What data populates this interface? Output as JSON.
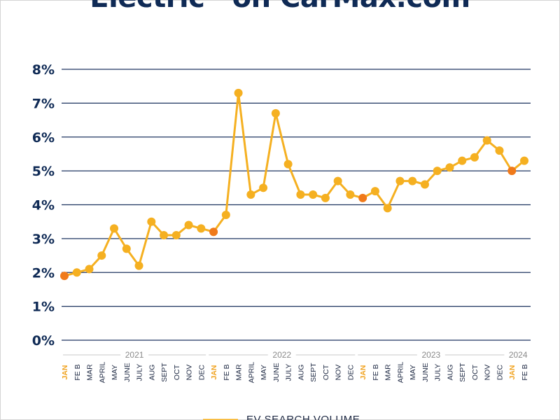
{
  "title": "Electric” on CarMax.com",
  "legend_label": "EV SEARCH VOLUME",
  "colors": {
    "line": "#f5b021",
    "highlight_point": "#f07a1a",
    "grid": "#1f3560",
    "axis_text": "#0f2a55",
    "highlight_label": "#f0a21e"
  },
  "chart_data": {
    "type": "line",
    "title": "Electric” on CarMax.com",
    "xlabel": "",
    "ylabel": "",
    "ylim": [
      0,
      8
    ],
    "yticks": [
      "0%",
      "1%",
      "2%",
      "3%",
      "4%",
      "5%",
      "6%",
      "7%",
      "8%"
    ],
    "grid": true,
    "legend_position": "bottom",
    "categories": [
      "JAN",
      "FE B",
      "MAR",
      "APRIL",
      "MAY",
      "JUNE",
      "JULY",
      "AUG",
      "SEPT",
      "OCT",
      "NOV",
      "DEC",
      "JAN",
      "FE B",
      "MAR",
      "APRIL",
      "MAY",
      "JUNE",
      "JULY",
      "AUG",
      "SEPT",
      "OCT",
      "NOV",
      "DEC",
      "JAN",
      "FE B",
      "MAR",
      "APRIL",
      "MAY",
      "JUNE",
      "JULY",
      "AUG",
      "SEPT",
      "OCT",
      "NOV",
      "DEC",
      "JAN",
      "FE B"
    ],
    "highlight_indices": [
      0,
      12,
      24,
      36
    ],
    "years": [
      {
        "label": "2021",
        "start": 0,
        "end": 11
      },
      {
        "label": "2022",
        "start": 12,
        "end": 23
      },
      {
        "label": "2023",
        "start": 24,
        "end": 35
      },
      {
        "label": "2024",
        "start": 36,
        "end": 37
      }
    ],
    "series": [
      {
        "name": "EV SEARCH VOLUME",
        "values": [
          1.9,
          2.0,
          2.1,
          2.5,
          3.3,
          2.7,
          2.2,
          3.5,
          3.1,
          3.1,
          3.4,
          3.3,
          3.2,
          3.7,
          7.3,
          4.3,
          4.5,
          6.7,
          5.2,
          4.3,
          4.3,
          4.2,
          4.7,
          4.3,
          4.2,
          4.4,
          3.9,
          4.7,
          4.7,
          4.6,
          5.0,
          5.1,
          5.3,
          5.4,
          5.9,
          5.6,
          5.0,
          5.3
        ]
      }
    ]
  }
}
